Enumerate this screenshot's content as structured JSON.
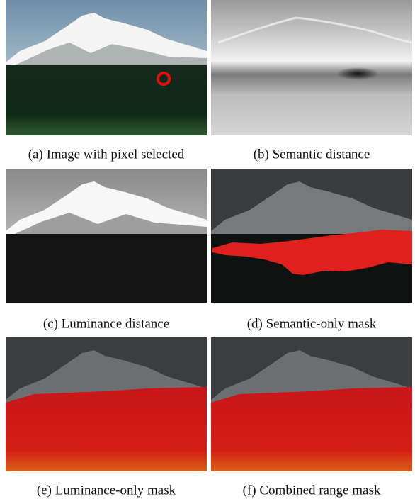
{
  "figure": {
    "panels": [
      {
        "caption": "(a) Image with pixel selected"
      },
      {
        "caption": "(b) Semantic distance"
      },
      {
        "caption": "(c) Luminance distance"
      },
      {
        "caption": "(d) Semantic-only mask"
      },
      {
        "caption": "(e) Luminance-only mask"
      },
      {
        "caption": "(f) Combined range mask"
      }
    ]
  }
}
